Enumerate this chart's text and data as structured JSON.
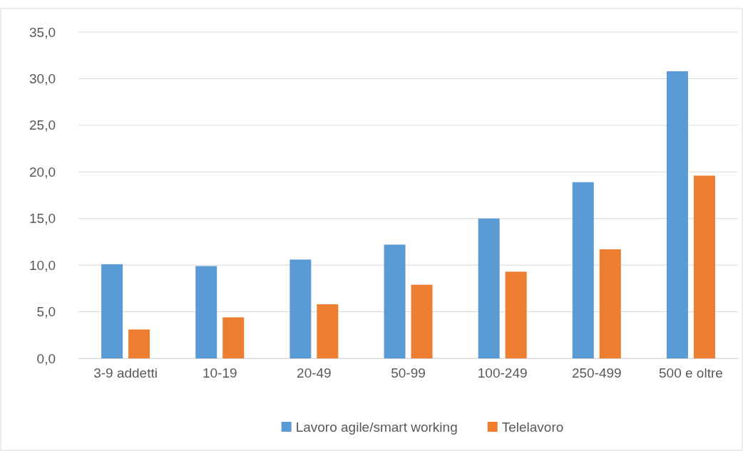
{
  "chart_data": {
    "type": "bar",
    "categories": [
      "3-9 addetti",
      "10-19",
      "20-49",
      "50-99",
      "100-249",
      "250-499",
      "500 e oltre"
    ],
    "series": [
      {
        "name": "Lavoro agile/smart working",
        "color": "#5b9bd5",
        "values": [
          10.1,
          9.9,
          10.6,
          12.2,
          15.0,
          18.9,
          30.8
        ]
      },
      {
        "name": "Telelavoro",
        "color": "#ed7d31",
        "values": [
          3.1,
          4.4,
          5.8,
          7.9,
          9.3,
          11.7,
          19.6
        ]
      }
    ],
    "ylim": [
      0,
      35
    ],
    "yticks": [
      {
        "value": 0,
        "label": "0,0"
      },
      {
        "value": 5,
        "label": "5,0"
      },
      {
        "value": 10,
        "label": "10,0"
      },
      {
        "value": 15,
        "label": "15,0"
      },
      {
        "value": 20,
        "label": "20,0"
      },
      {
        "value": 25,
        "label": "25,0"
      },
      {
        "value": 30,
        "label": "30,0"
      },
      {
        "value": 35,
        "label": "35,0"
      }
    ],
    "grid": "y",
    "legend": "bottom"
  }
}
